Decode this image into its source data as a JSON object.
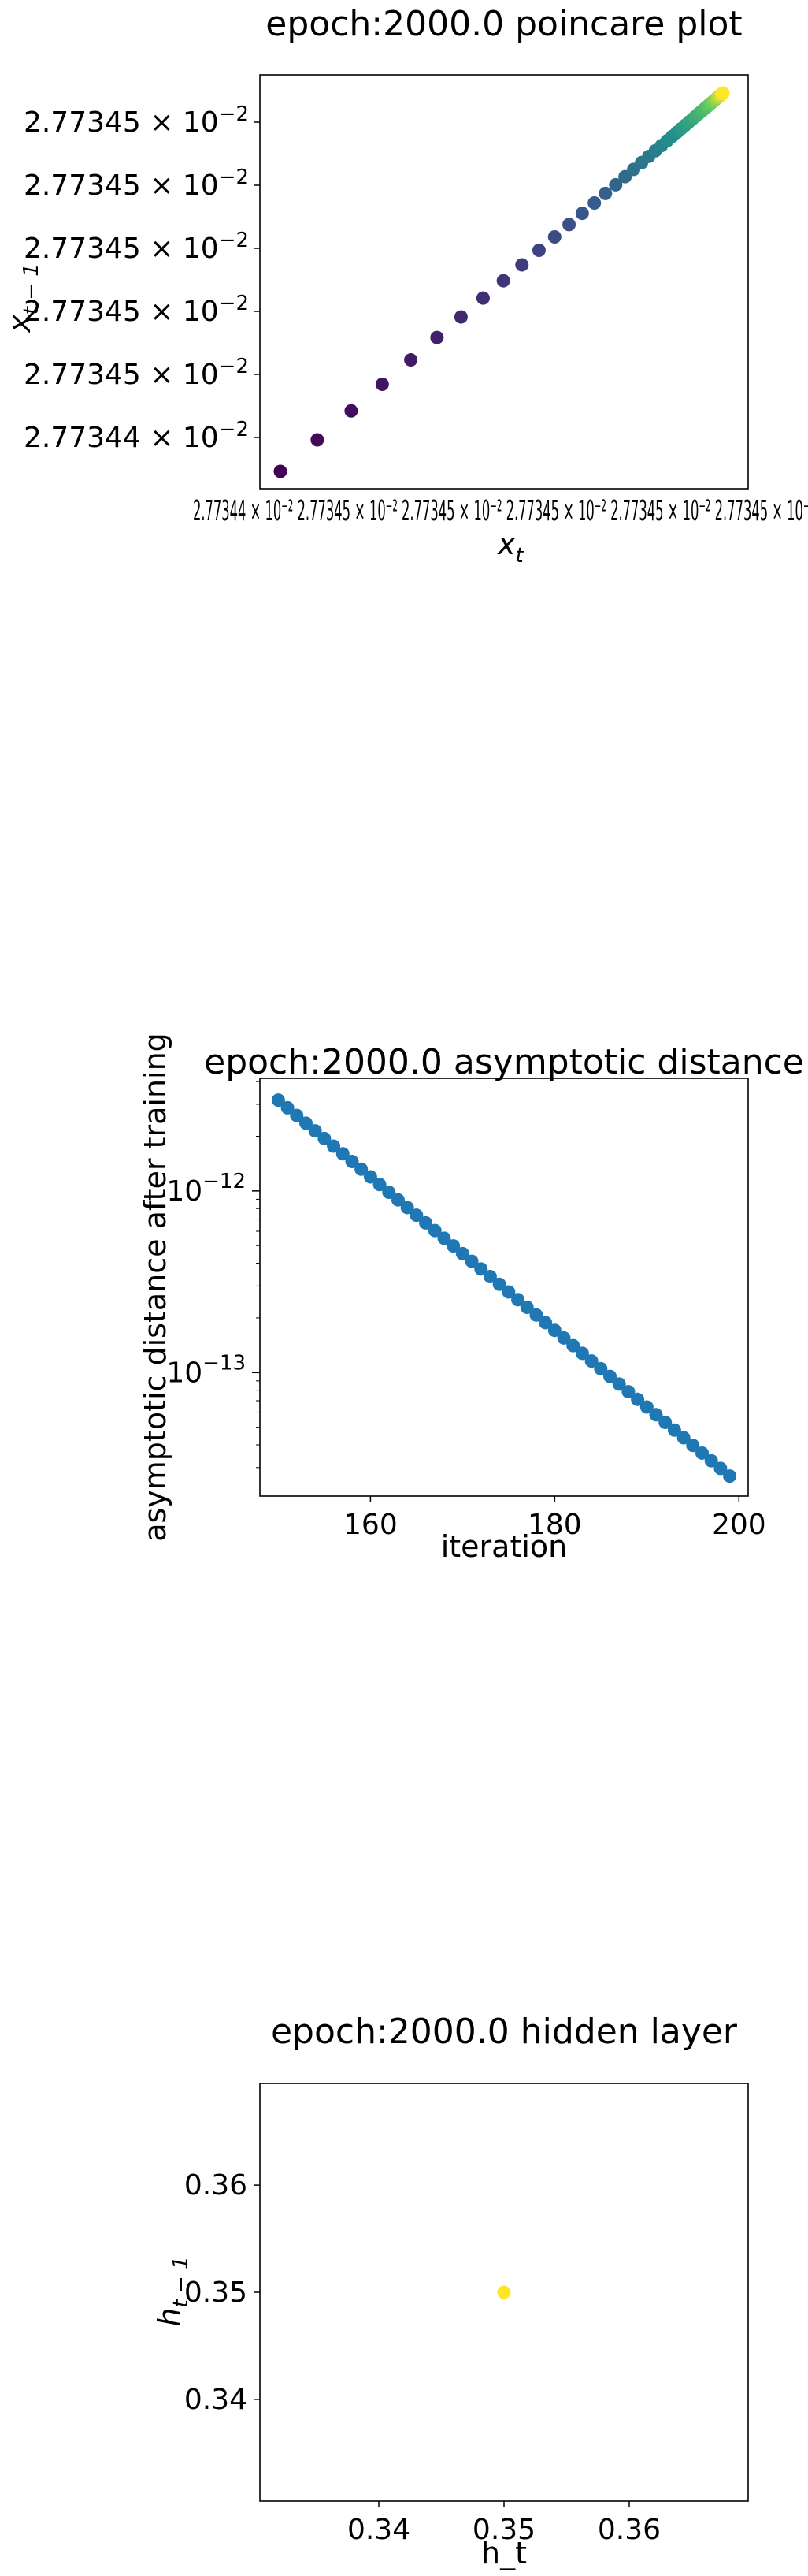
{
  "chart_data": [
    {
      "type": "scatter",
      "title": "epoch:2000.0 poincare plot",
      "xlabel_main": "x",
      "xlabel_sub": "t",
      "ylabel_main": "x",
      "ylabel_sub": "t − 1",
      "colormap": "viridis",
      "xticklabel_text": "2.77344 × 10⁻² 2.77345 × 10⁻² 2.77345 × 10⁻² 2.77345 × 10⁻² 2.77345 × 10⁻² 2.77345 × 10⁻²",
      "yticks": [
        {
          "mantissa": "2.77344",
          "exp": "10",
          "power": "−2",
          "pos": 0.0
        },
        {
          "mantissa": "2.77345",
          "exp": "10",
          "power": "−2",
          "pos": 0.2
        },
        {
          "mantissa": "2.77345",
          "exp": "10",
          "power": "−2",
          "pos": 0.4
        },
        {
          "mantissa": "2.77345",
          "exp": "10",
          "power": "−2",
          "pos": 0.6
        },
        {
          "mantissa": "2.77345",
          "exp": "10",
          "power": "−2",
          "pos": 0.8
        },
        {
          "mantissa": "2.77345",
          "exp": "10",
          "power": "−2",
          "pos": 1.0
        }
      ],
      "points_note": "normalized t in [0,1] along diagonal, spacing shrinking geometrically",
      "n_points": 50
    },
    {
      "type": "scatter",
      "title": "epoch:2000.0 asymptotic distance",
      "xlabel": "iteration",
      "ylabel": "asymptotic distance after training",
      "yscale": "log",
      "color": "#1f77b4",
      "xlim": [
        148,
        201
      ],
      "ylim_log10": [
        -13.68,
        -11.38
      ],
      "xticks": [
        160,
        180,
        200
      ],
      "yticks": [
        {
          "base": "10",
          "power": "−12",
          "log": -12
        },
        {
          "base": "10",
          "power": "−13",
          "log": -13
        }
      ],
      "x": [
        150,
        151,
        152,
        153,
        154,
        155,
        156,
        157,
        158,
        159,
        160,
        161,
        162,
        163,
        164,
        165,
        166,
        167,
        168,
        169,
        170,
        171,
        172,
        173,
        174,
        175,
        176,
        177,
        178,
        179,
        180,
        181,
        182,
        183,
        184,
        185,
        186,
        187,
        188,
        189,
        190,
        191,
        192,
        193,
        194,
        195,
        196,
        197,
        198,
        199
      ],
      "y_log10_start": -11.5,
      "y_log10_end": -13.57
    },
    {
      "type": "scatter",
      "title": "epoch:2000.0 hidden layer",
      "xlabel": "h_t",
      "ylabel_main": "h",
      "ylabel_sub": "t − 1",
      "color": "#fde725",
      "xlim": [
        0.3305,
        0.3695
      ],
      "ylim": [
        0.3305,
        0.3695
      ],
      "xticks": [
        "0.34",
        "0.35",
        "0.36"
      ],
      "yticks": [
        "0.34",
        "0.35",
        "0.36"
      ],
      "x": [
        0.35
      ],
      "y": [
        0.35
      ]
    }
  ]
}
